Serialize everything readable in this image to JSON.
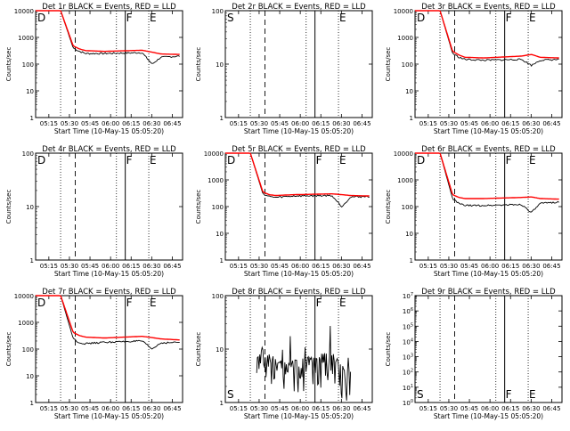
{
  "chart_data": [
    {
      "type": "line",
      "title": "Det 1r BLACK = Events, RED = LLD",
      "xlabel": "Start Time (10-May-15 05:05:20)",
      "ylabel": "Counts/sec",
      "log_y": true,
      "ylim": [
        1,
        10000
      ],
      "yticks": [
        "1",
        "10",
        "100",
        "1000",
        "10000"
      ],
      "xticks": [
        "05:15",
        "05:30",
        "05:45",
        "06:00",
        "06:15",
        "06:30",
        "06:45"
      ],
      "corner_label": "D",
      "markers": {
        "F": "F",
        "E": "E"
      },
      "series": [
        {
          "color": "#000000",
          "profile": "high",
          "values_desc": [
            [
              0,
              10000
            ],
            [
              20,
              10000
            ],
            [
              30,
              400
            ],
            [
              35,
              300
            ],
            [
              40,
              250
            ],
            [
              55,
              250
            ],
            [
              85,
              270
            ],
            [
              93,
              100
            ],
            [
              100,
              180
            ],
            [
              115,
              200
            ]
          ]
        },
        {
          "color": "#ff0000",
          "profile": "high",
          "values_desc": [
            [
              0,
              10000
            ],
            [
              20,
              10000
            ],
            [
              30,
              480
            ],
            [
              35,
              370
            ],
            [
              40,
              320
            ],
            [
              55,
              300
            ],
            [
              85,
              330
            ],
            [
              93,
              280
            ],
            [
              100,
              240
            ],
            [
              115,
              230
            ]
          ]
        }
      ]
    },
    {
      "type": "line",
      "title": "Det 2r BLACK = Events, RED = LLD",
      "xlabel": "Start Time (10-May-15 05:05:20)",
      "ylabel": "Counts/sec",
      "log_y": true,
      "ylim": [
        1,
        100
      ],
      "yticks": [
        "1",
        "10",
        "100"
      ],
      "xticks": [
        "05:15",
        "05:30",
        "05:45",
        "06:00",
        "06:15",
        "06:30",
        "06:45"
      ],
      "corner_label": "S",
      "markers": {
        "F": "",
        "E": "E"
      },
      "series": []
    },
    {
      "type": "line",
      "title": "Det 3r BLACK = Events, RED = LLD",
      "xlabel": "Start Time (10-May-15 05:05:20)",
      "ylabel": "Counts/sec",
      "log_y": true,
      "ylim": [
        1,
        10000
      ],
      "yticks": [
        "1",
        "10",
        "100",
        "1000",
        "10000"
      ],
      "xticks": [
        "05:15",
        "05:30",
        "05:45",
        "06:00",
        "06:15",
        "06:30",
        "06:45"
      ],
      "corner_label": "D",
      "markers": {
        "F": "F",
        "E": "E"
      },
      "series": [
        {
          "color": "#000000",
          "profile": "high",
          "values_desc": [
            [
              0,
              10000
            ],
            [
              20,
              10000
            ],
            [
              30,
              250
            ],
            [
              35,
              180
            ],
            [
              40,
              150
            ],
            [
              55,
              140
            ],
            [
              85,
              150
            ],
            [
              93,
              90
            ],
            [
              100,
              140
            ],
            [
              115,
              150
            ]
          ]
        },
        {
          "color": "#ff0000",
          "profile": "high",
          "values_desc": [
            [
              0,
              10000
            ],
            [
              20,
              10000
            ],
            [
              30,
              300
            ],
            [
              35,
              220
            ],
            [
              40,
              180
            ],
            [
              55,
              170
            ],
            [
              85,
              200
            ],
            [
              93,
              230
            ],
            [
              100,
              180
            ],
            [
              115,
              170
            ]
          ]
        }
      ]
    },
    {
      "type": "line",
      "title": "Det 4r BLACK = Events, RED = LLD",
      "xlabel": "Start Time (10-May-15 05:05:20)",
      "ylabel": "Counts/sec",
      "log_y": true,
      "ylim": [
        1,
        100
      ],
      "yticks": [
        "1",
        "10",
        "100"
      ],
      "xticks": [
        "05:15",
        "05:30",
        "05:45",
        "06:00",
        "06:15",
        "06:30",
        "06:45"
      ],
      "corner_label": "D",
      "markers": {
        "F": "F",
        "E": "E"
      },
      "series": []
    },
    {
      "type": "line",
      "title": "Det 5r BLACK = Events, RED = LLD",
      "xlabel": "Start Time (10-May-15 05:05:20)",
      "ylabel": "Counts/sec",
      "log_y": true,
      "ylim": [
        1,
        10000
      ],
      "yticks": [
        "1",
        "10",
        "100",
        "1000",
        "10000"
      ],
      "xticks": [
        "05:15",
        "05:30",
        "05:45",
        "06:00",
        "06:15",
        "06:30",
        "06:45"
      ],
      "corner_label": "D",
      "markers": {
        "F": "F",
        "E": "E"
      },
      "series": [
        {
          "color": "#000000",
          "profile": "high",
          "values_desc": [
            [
              0,
              10000
            ],
            [
              20,
              10000
            ],
            [
              30,
              300
            ],
            [
              35,
              240
            ],
            [
              40,
              220
            ],
            [
              55,
              250
            ],
            [
              85,
              260
            ],
            [
              93,
              100
            ],
            [
              100,
              230
            ],
            [
              115,
              240
            ]
          ]
        },
        {
          "color": "#ff0000",
          "profile": "high",
          "values_desc": [
            [
              0,
              10000
            ],
            [
              20,
              10000
            ],
            [
              30,
              350
            ],
            [
              35,
              280
            ],
            [
              40,
              260
            ],
            [
              55,
              280
            ],
            [
              85,
              300
            ],
            [
              93,
              280
            ],
            [
              100,
              260
            ],
            [
              115,
              250
            ]
          ]
        }
      ]
    },
    {
      "type": "line",
      "title": "Det 6r BLACK = Events, RED = LLD",
      "xlabel": "Start Time (10-May-15 05:05:20)",
      "ylabel": "Counts/sec",
      "log_y": true,
      "ylim": [
        1,
        10000
      ],
      "yticks": [
        "1",
        "10",
        "100",
        "1000",
        "10000"
      ],
      "xticks": [
        "05:15",
        "05:30",
        "05:45",
        "06:00",
        "06:15",
        "06:30",
        "06:45"
      ],
      "corner_label": "D",
      "markers": {
        "F": "F",
        "E": "E"
      },
      "series": [
        {
          "color": "#000000",
          "profile": "high",
          "values_desc": [
            [
              0,
              10000
            ],
            [
              20,
              10000
            ],
            [
              30,
              200
            ],
            [
              35,
              130
            ],
            [
              40,
              110
            ],
            [
              55,
              110
            ],
            [
              85,
              120
            ],
            [
              93,
              60
            ],
            [
              100,
              130
            ],
            [
              115,
              150
            ]
          ]
        },
        {
          "color": "#ff0000",
          "profile": "high",
          "values_desc": [
            [
              0,
              10000
            ],
            [
              20,
              10000
            ],
            [
              30,
              280
            ],
            [
              35,
              220
            ],
            [
              40,
              200
            ],
            [
              55,
              200
            ],
            [
              85,
              220
            ],
            [
              93,
              230
            ],
            [
              100,
              200
            ],
            [
              115,
              190
            ]
          ]
        }
      ]
    },
    {
      "type": "line",
      "title": "Det 7r BLACK = Events, RED = LLD",
      "xlabel": "Start Time (10-May-15 05:05:20)",
      "ylabel": "Counts/sec",
      "log_y": true,
      "ylim": [
        1,
        10000
      ],
      "yticks": [
        "1",
        "10",
        "100",
        "1000",
        "10000"
      ],
      "xticks": [
        "05:15",
        "05:30",
        "05:45",
        "06:00",
        "06:15",
        "06:30",
        "06:45"
      ],
      "corner_label": "D",
      "markers": {
        "F": "F",
        "E": "E"
      },
      "series": [
        {
          "color": "#000000",
          "profile": "high",
          "values_desc": [
            [
              0,
              10000
            ],
            [
              20,
              10000
            ],
            [
              30,
              250
            ],
            [
              35,
              170
            ],
            [
              40,
              160
            ],
            [
              55,
              180
            ],
            [
              85,
              200
            ],
            [
              93,
              100
            ],
            [
              100,
              170
            ],
            [
              115,
              180
            ]
          ]
        },
        {
          "color": "#ff0000",
          "profile": "high",
          "values_desc": [
            [
              0,
              10000
            ],
            [
              20,
              10000
            ],
            [
              30,
              420
            ],
            [
              35,
              320
            ],
            [
              40,
              280
            ],
            [
              55,
              260
            ],
            [
              85,
              300
            ],
            [
              93,
              270
            ],
            [
              100,
              240
            ],
            [
              115,
              220
            ]
          ]
        }
      ]
    },
    {
      "type": "line",
      "title": "Det 8r BLACK = Events, RED = LLD",
      "xlabel": "Start Time (10-May-15 05:05:20)",
      "ylabel": "Counts/sec",
      "log_y": true,
      "ylim": [
        1,
        100
      ],
      "yticks": [
        "1",
        "10",
        "100"
      ],
      "xticks": [
        "05:15",
        "05:30",
        "05:45",
        "06:00",
        "06:15",
        "06:30",
        "06:45"
      ],
      "corner_label": "S",
      "markers": {
        "F": "F",
        "E": "E"
      },
      "series": [
        {
          "color": "#000000",
          "profile": "noisy",
          "values_desc": [
            [
              25,
              5
            ],
            [
              40,
              3
            ],
            [
              60,
              3
            ],
            [
              85,
              4
            ],
            [
              95,
              2
            ],
            [
              100,
              2
            ]
          ]
        }
      ]
    },
    {
      "type": "line",
      "title": "Det 9r BLACK = Events, RED = LLD",
      "xlabel": "Start Time (10-May-15 05:05:20)",
      "ylabel": "Counts/sec",
      "log_y": true,
      "ylim": [
        1,
        10000000
      ],
      "yticks": [
        "10^0",
        "10^1",
        "10^2",
        "10^3",
        "10^4",
        "10^5",
        "10^6",
        "10^7"
      ],
      "xticks": [
        "05:15",
        "05:30",
        "05:45",
        "06:00",
        "06:15",
        "06:30",
        "06:45"
      ],
      "corner_label": "S",
      "markers": {
        "F": "F",
        "E": "E"
      },
      "series": []
    }
  ]
}
